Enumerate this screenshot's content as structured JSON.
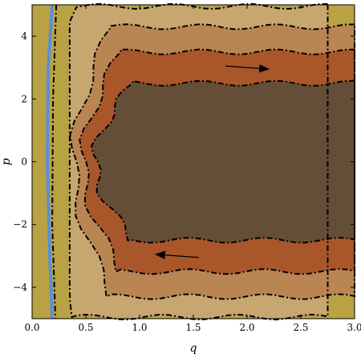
{
  "chart_data": {
    "type": "contour",
    "xlabel": "q",
    "ylabel": "p",
    "xlim": [
      0,
      3
    ],
    "ylim": [
      -5,
      5
    ],
    "x_ticks": [
      "0.0",
      "0.5",
      "1.0",
      "1.5",
      "2.0",
      "2.5",
      "3.0"
    ],
    "x_tick_values": [
      0,
      0.5,
      1,
      1.5,
      2,
      2.5,
      3
    ],
    "y_ticks": [
      "−4",
      "−2",
      "0",
      "2",
      "4"
    ],
    "y_tick_values": [
      -4,
      -2,
      0,
      2,
      4
    ],
    "contour_levels": [
      {
        "name": "level-1",
        "color": "#b8a244",
        "right_edge_p": 5.0
      },
      {
        "name": "level-2",
        "color": "#c8a670",
        "right_edge_p": 5.0
      },
      {
        "name": "level-3",
        "color": "#b98552",
        "right_edge_p": 4.3
      },
      {
        "name": "level-4",
        "color": "#a9562b",
        "right_edge_p": 3.5
      },
      {
        "name": "level-5",
        "color": "#654e37",
        "right_edge_p": 2.5
      }
    ],
    "boundary_color": "#5b8fd6",
    "wall_q": 0.15,
    "arrows": [
      {
        "name": "upper-arrow",
        "from": [
          1.8,
          3.05
        ],
        "to": [
          2.2,
          2.95
        ]
      },
      {
        "name": "lower-arrow",
        "from": [
          1.55,
          -3.05
        ],
        "to": [
          1.15,
          -2.95
        ]
      }
    ]
  }
}
